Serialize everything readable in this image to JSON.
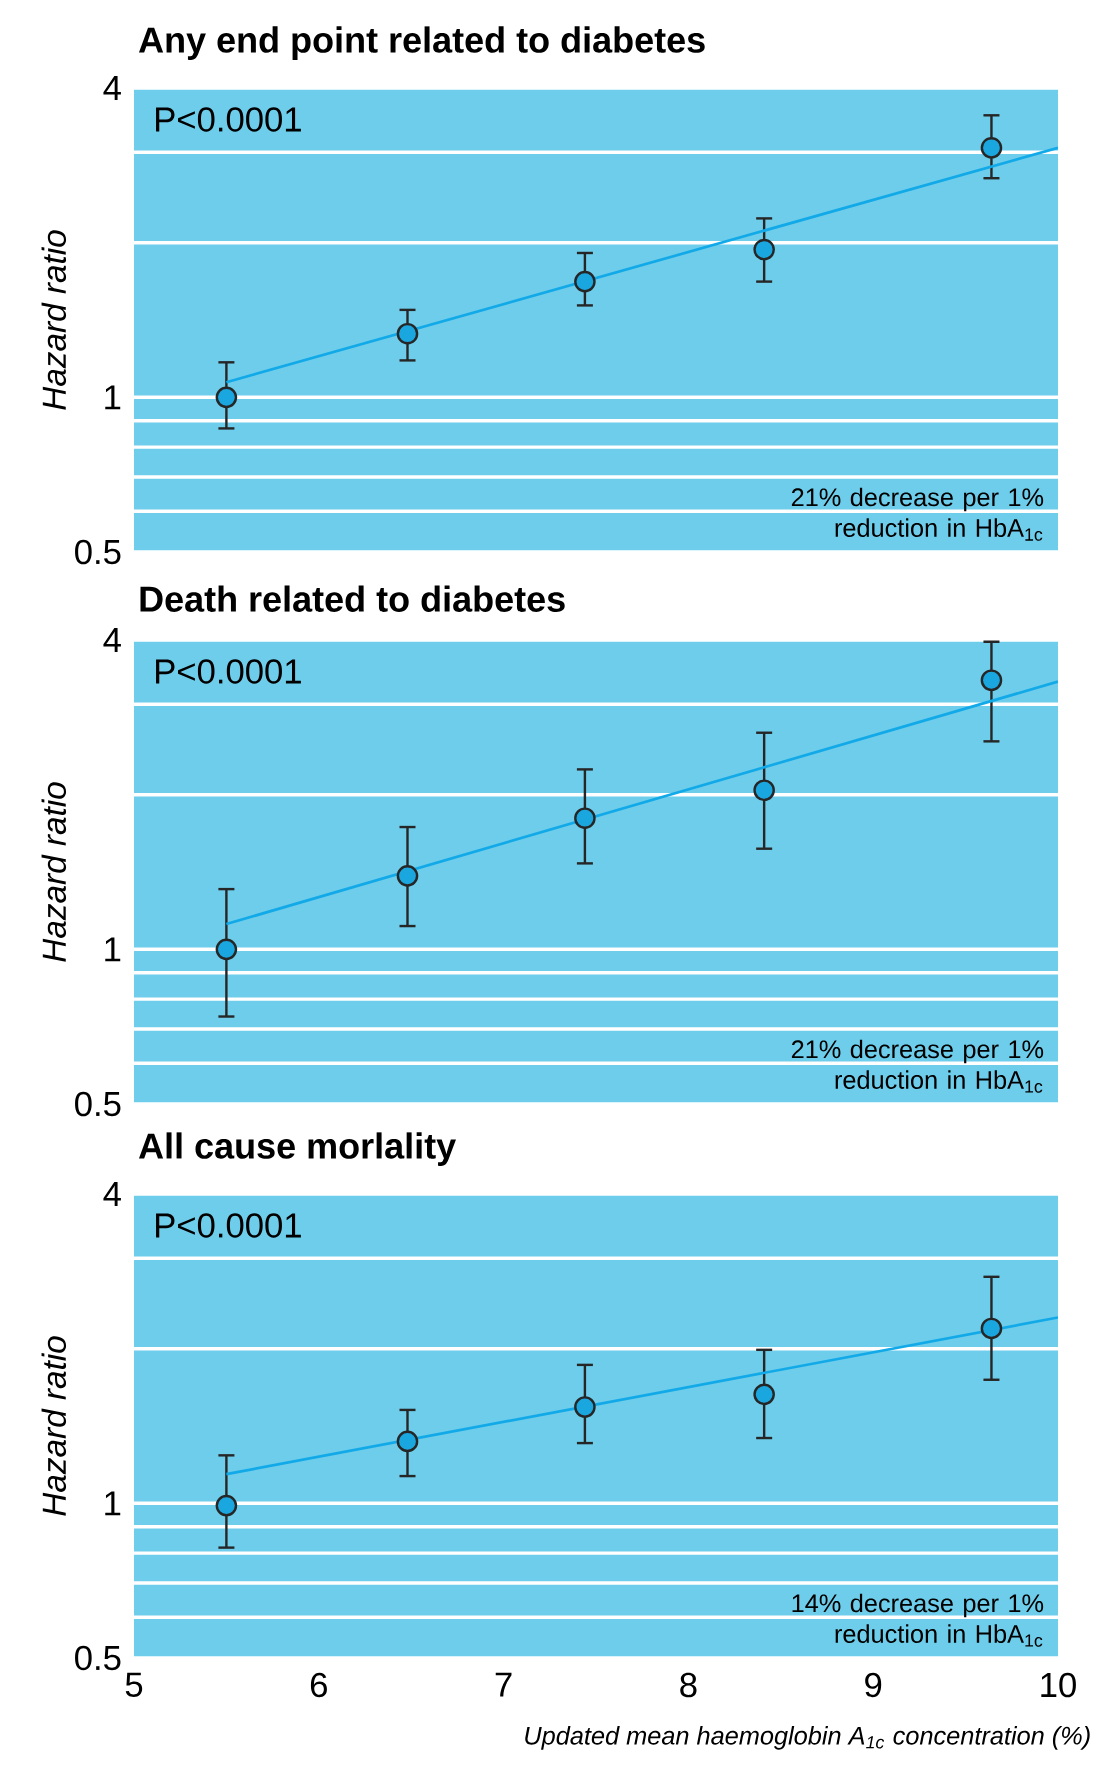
{
  "chart_data": [
    {
      "type": "scatter",
      "title": "Any end point related to diabetes",
      "ylabel": "Hazard ratio",
      "log": "y",
      "grid": "y",
      "marker": "circle",
      "tick_labels": "y",
      "xlim": [
        5,
        10
      ],
      "xticks": [
        5,
        6,
        7,
        8,
        9,
        10
      ],
      "ylim": [
        0.5,
        4
      ],
      "yticks": [
        0.5,
        {
          "value": 0.6,
          "label": null
        },
        {
          "value": 0.7,
          "label": null
        },
        {
          "value": 0.8,
          "label": null
        },
        {
          "value": 0.9,
          "label": null
        },
        1,
        {
          "value": 2,
          "label": null
        },
        {
          "value": 3,
          "label": null
        },
        4
      ],
      "annotations": [
        "P<0.0001",
        "21% decrease per 1% reduction in HbA$_{1c}$"
      ],
      "series": [
        {
          "color": "#1aa7e0",
          "x": [
            5.5,
            6.48,
            7.44,
            8.41,
            9.64
          ],
          "values": [
            1.0,
            1.33,
            1.68,
            1.94,
            3.06
          ],
          "errors": [
            [
              0.87,
              1.17
            ],
            [
              1.18,
              1.48
            ],
            [
              1.51,
              1.91
            ],
            [
              1.68,
              2.23
            ],
            [
              2.67,
              3.54
            ]
          ]
        },
        {
          "type": "line",
          "color": "#12a9e8",
          "marker": "none",
          "x": [
            5.5,
            10
          ],
          "values": [
            1.07,
            3.06
          ]
        }
      ]
    },
    {
      "type": "scatter",
      "title": "Death related to diabetes",
      "ylabel": "Hazard ratio",
      "log": "y",
      "grid": "y",
      "marker": "circle",
      "tick_labels": "y",
      "xlim": [
        5,
        10
      ],
      "xticks": [
        5,
        6,
        7,
        8,
        9,
        10
      ],
      "ylim": [
        0.5,
        4
      ],
      "yticks": [
        0.5,
        {
          "value": 0.6,
          "label": null
        },
        {
          "value": 0.7,
          "label": null
        },
        {
          "value": 0.8,
          "label": null
        },
        {
          "value": 0.9,
          "label": null
        },
        1,
        {
          "value": 2,
          "label": null
        },
        {
          "value": 3,
          "label": null
        },
        4
      ],
      "annotations": [
        "P<0.0001",
        "21% decrease per 1% reduction in HbA$_{1c}$"
      ],
      "series": [
        {
          "color": "#1aa7e0",
          "x": [
            5.5,
            6.48,
            7.44,
            8.41,
            9.64
          ],
          "values": [
            1.0,
            1.39,
            1.8,
            2.04,
            3.34
          ],
          "errors": [
            [
              0.74,
              1.31
            ],
            [
              1.11,
              1.73
            ],
            [
              1.47,
              2.24
            ],
            [
              1.57,
              2.64
            ],
            [
              2.54,
              3.97
            ]
          ]
        },
        {
          "type": "line",
          "color": "#12a9e8",
          "marker": "none",
          "x": [
            5.5,
            10
          ],
          "values": [
            1.12,
            3.32
          ]
        }
      ]
    },
    {
      "type": "scatter",
      "title": "All cause morlality",
      "ylabel": "Hazard ratio",
      "xlabel": "Updated mean haemoglobin A$_{1c}$ concentration (%)",
      "log": "y",
      "grid": "y",
      "marker": "circle",
      "xlim": [
        5,
        10
      ],
      "xticks": [
        5,
        6,
        7,
        8,
        9,
        10
      ],
      "ylim": [
        0.5,
        4
      ],
      "yticks": [
        0.5,
        {
          "value": 0.6,
          "label": null
        },
        {
          "value": 0.7,
          "label": null
        },
        {
          "value": 0.8,
          "label": null
        },
        {
          "value": 0.9,
          "label": null
        },
        1,
        {
          "value": 2,
          "label": null
        },
        {
          "value": 3,
          "label": null
        },
        4
      ],
      "annotations": [
        "P<0.0001",
        "14% decrease per 1% reduction in HbA$_{1c}$"
      ],
      "series": [
        {
          "color": "#1aa7e0",
          "x": [
            5.5,
            6.48,
            7.44,
            8.41,
            9.64
          ],
          "values": [
            0.99,
            1.32,
            1.54,
            1.63,
            2.19
          ],
          "errors": [
            [
              0.82,
              1.24
            ],
            [
              1.13,
              1.52
            ],
            [
              1.31,
              1.86
            ],
            [
              1.34,
              1.99
            ],
            [
              1.74,
              2.76
            ]
          ]
        },
        {
          "type": "line",
          "color": "#12a9e8",
          "marker": "none",
          "x": [
            5.5,
            10
          ],
          "values": [
            1.14,
            2.3
          ]
        }
      ]
    }
  ]
}
